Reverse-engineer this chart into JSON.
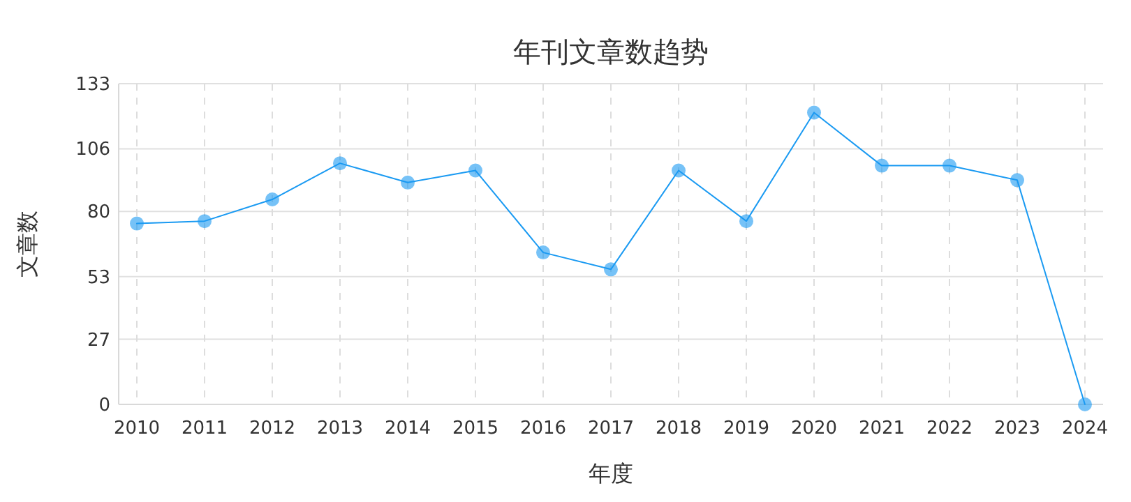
{
  "chart_data": {
    "type": "line",
    "title": "年刊文章数趋势",
    "xlabel": "年度",
    "ylabel": "文章数",
    "categories": [
      "2010",
      "2011",
      "2012",
      "2013",
      "2014",
      "2015",
      "2016",
      "2017",
      "2018",
      "2019",
      "2020",
      "2021",
      "2022",
      "2023",
      "2024"
    ],
    "series": [
      {
        "color": "#1a9af2",
        "values": [
          75,
          76,
          85,
          100,
          92,
          97,
          63,
          56,
          97,
          76,
          121,
          99,
          99,
          93,
          0
        ]
      }
    ],
    "ylim": [
      0,
      133
    ],
    "yticks": [
      0,
      27,
      53,
      80,
      106,
      133
    ],
    "grid": true,
    "marker": "circle",
    "line_style": "solid"
  }
}
